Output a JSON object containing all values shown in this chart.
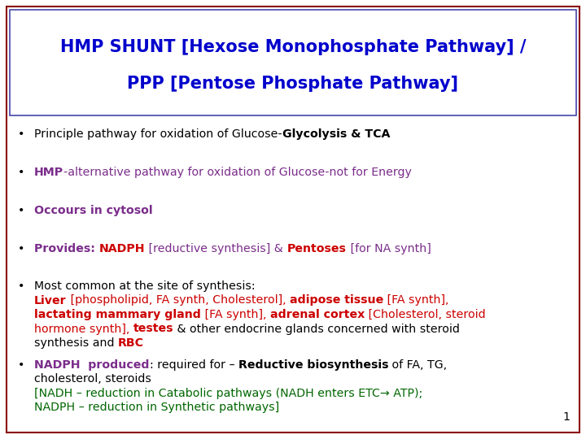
{
  "title_line1": "HMP SHUNT [Hexose Monophosphate Pathway] /",
  "title_line2": "PPP [Pentose Phosphate Pathway]",
  "title_color": "#0000CC",
  "background_color": "#FFFFFF",
  "outer_border_color": "#8B0000",
  "title_border_color": "#4444AA",
  "page_number": "1",
  "figsize": [
    7.2,
    5.4
  ],
  "dpi": 100
}
